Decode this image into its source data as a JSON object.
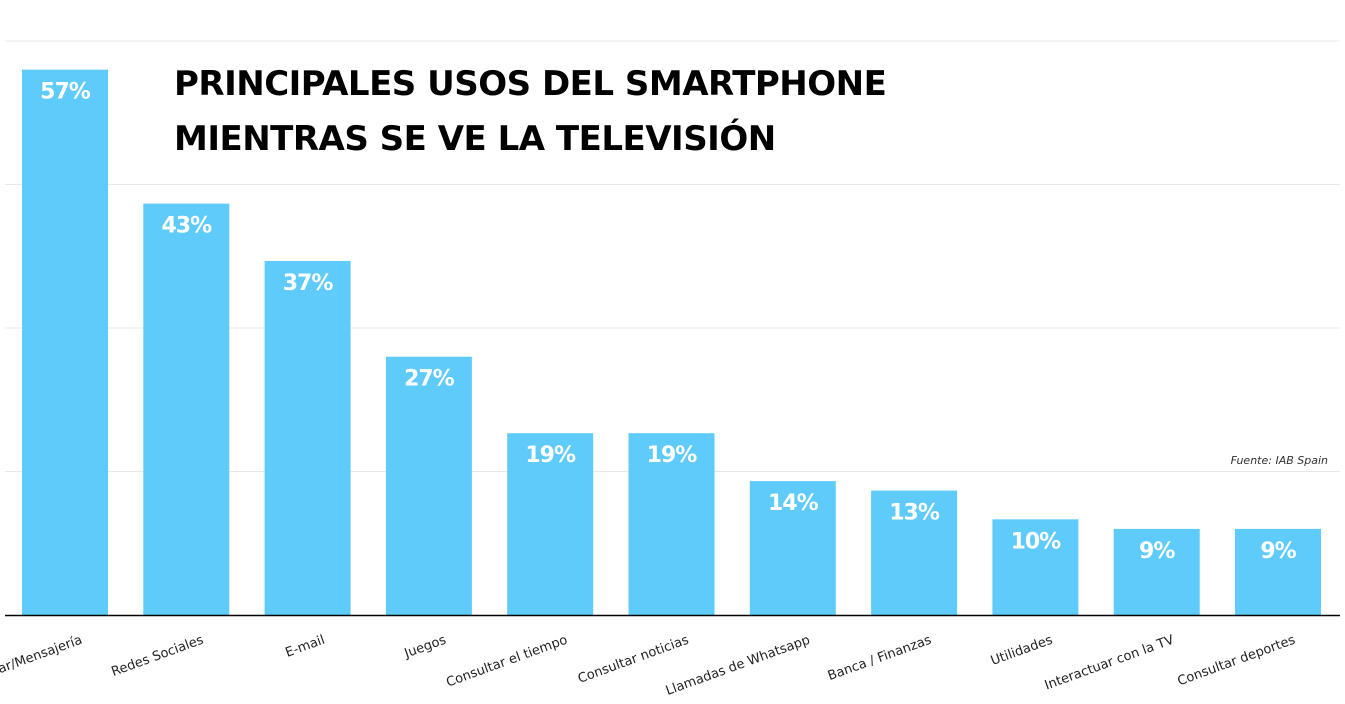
{
  "chart_data": {
    "type": "bar",
    "title_lines": [
      "PRINCIPALES USOS DEL SMARTPHONE",
      "MIENTRAS SE VE LA TELEVISIÓN"
    ],
    "source": "Fuente: IAB Spain",
    "categories": [
      "Chatear/Mensajería",
      "Redes Sociales",
      "E-mail",
      "Juegos",
      "Consultar el tiempo",
      "Consultar noticias",
      "Llamadas de Whatsapp",
      "Banca / Finanzas",
      "Utilidades",
      "Interactuar con la TV",
      "Consultar deportes"
    ],
    "values": [
      57,
      43,
      37,
      27,
      19,
      19,
      14,
      13,
      10,
      9,
      9
    ],
    "value_labels": [
      "57%",
      "43%",
      "37%",
      "27%",
      "19%",
      "19%",
      "14%",
      "13%",
      "10%",
      "9%",
      "9%"
    ],
    "ylim": [
      0,
      60
    ],
    "grid": true,
    "bar_color": "#5ecbfb",
    "grid_color": "#e8e8e8",
    "axis_color": "#000000"
  }
}
